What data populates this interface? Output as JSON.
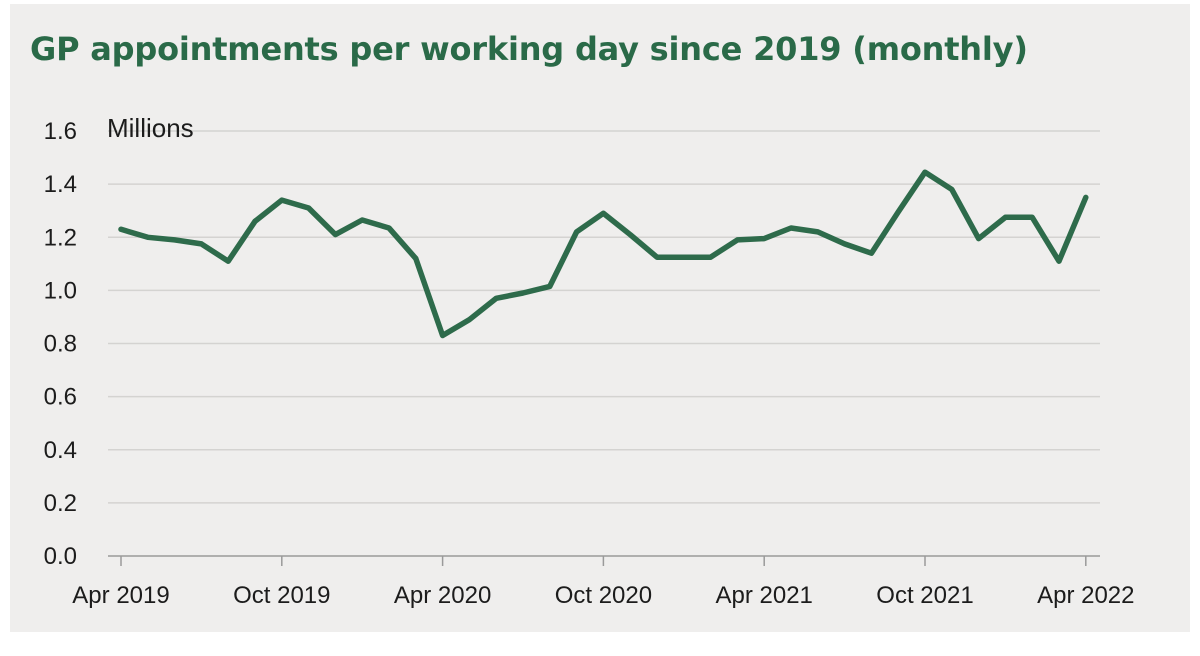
{
  "chart_data": {
    "type": "line",
    "title": "GP appointments per working day since 2019 (monthly)",
    "ylabel": "Millions",
    "xlabel": "",
    "ylim": [
      0,
      1.6
    ],
    "yticks": [
      "0.0",
      "0.2",
      "0.4",
      "0.6",
      "0.8",
      "1.0",
      "1.2",
      "1.4",
      "1.6"
    ],
    "xticks": [
      "Apr 2019",
      "Oct 2019",
      "Apr 2020",
      "Oct 2020",
      "Apr 2021",
      "Oct 2021",
      "Apr 2022"
    ],
    "grid": "horizontal",
    "legend": "none",
    "colors": {
      "line": "#2e6b4b",
      "title": "#2a6a48",
      "grid": "#d4d3d1",
      "axis": "#9a9a9a",
      "background": "#efeeed"
    },
    "series": [
      {
        "x": [
          "Apr 2019",
          "May 2019",
          "Jun 2019",
          "Jul 2019",
          "Aug 2019",
          "Sep 2019",
          "Oct 2019",
          "Nov 2019",
          "Dec 2019",
          "Jan 2020",
          "Feb 2020",
          "Mar 2020",
          "Apr 2020",
          "May 2020",
          "Jun 2020",
          "Jul 2020",
          "Aug 2020",
          "Sep 2020",
          "Oct 2020",
          "Nov 2020",
          "Dec 2020",
          "Jan 2021",
          "Feb 2021",
          "Mar 2021",
          "Apr 2021",
          "May 2021",
          "Jun 2021",
          "Jul 2021",
          "Aug 2021",
          "Sep 2021",
          "Oct 2021",
          "Nov 2021",
          "Dec 2021",
          "Jan 2022",
          "Feb 2022",
          "Mar 2022",
          "Apr 2022"
        ],
        "values": [
          1.23,
          1.2,
          1.19,
          1.175,
          1.11,
          1.26,
          1.34,
          1.31,
          1.21,
          1.265,
          1.235,
          1.12,
          0.83,
          0.89,
          0.97,
          0.99,
          1.015,
          1.22,
          1.29,
          1.21,
          1.125,
          1.125,
          1.125,
          1.19,
          1.195,
          1.235,
          1.22,
          1.175,
          1.14,
          1.295,
          1.445,
          1.38,
          1.195,
          1.275,
          1.275,
          1.11,
          1.35
        ]
      }
    ]
  }
}
